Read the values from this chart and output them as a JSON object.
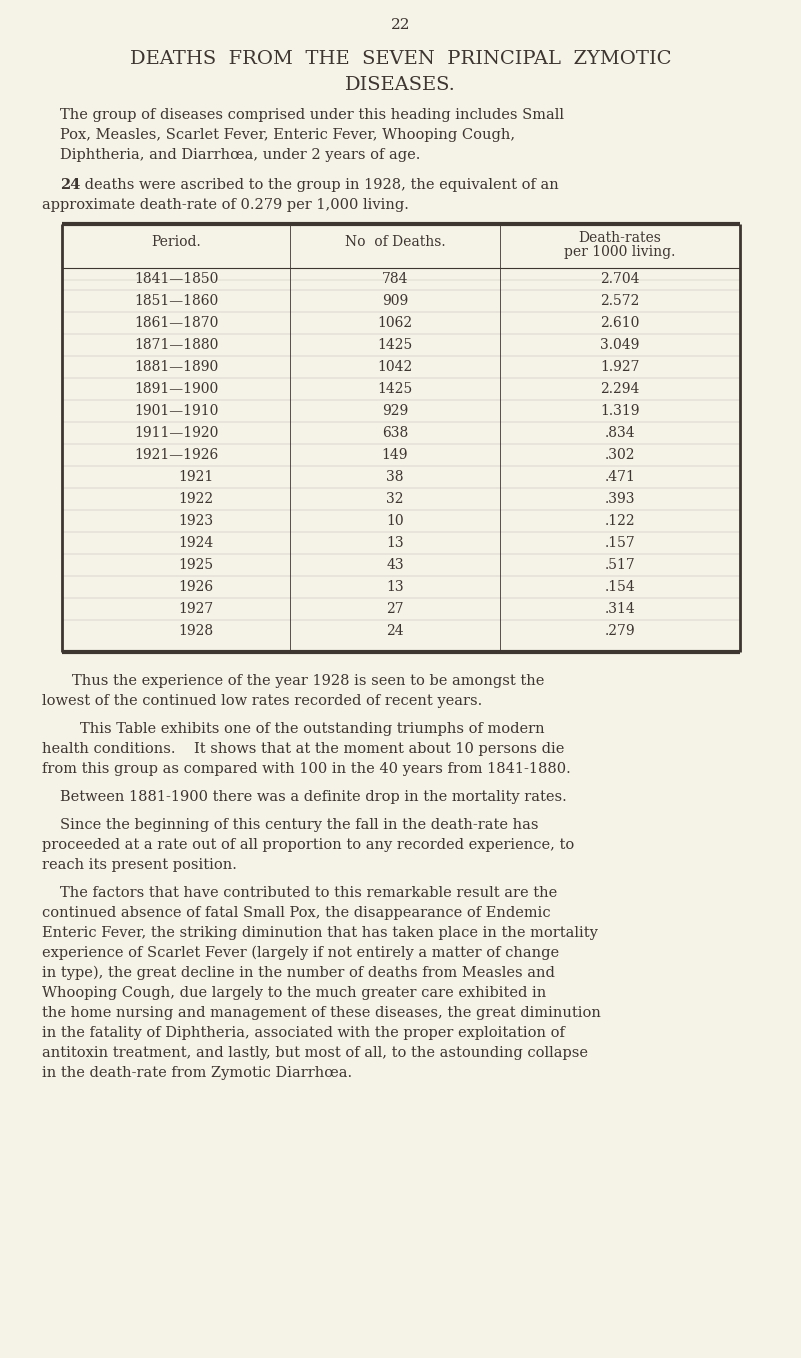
{
  "page_number": "22",
  "title_line1": "DEATHS  FROM  THE  SEVEN  PRINCIPAL  ZYMOTIC",
  "title_line2": "DISEASES.",
  "bg_color": "#f5f2e8",
  "text_color": "#3d3530",
  "para1_lines": [
    "The group of diseases comprised under this heading includes Small",
    "Pox, Measles, Scarlet Fever, Enteric Fever, Whooping Cough,",
    "Diphtheria, and Diarrhœa, under 2 years of age."
  ],
  "para2_bold": "24",
  "para2_rest_line1": " deaths were ascribed to the group in 1928, the equivalent of an",
  "para2_rest_line2": "approximate death-rate of 0.279 per 1,000 living.",
  "table_headers": [
    "Period.",
    "No  of Deaths.",
    "Death-rates\nper 1000 living."
  ],
  "table_rows": [
    [
      "1841—1850",
      "784",
      "2.704"
    ],
    [
      "1851—1860",
      "909",
      "2.572"
    ],
    [
      "1861—1870",
      "1062",
      "2.610"
    ],
    [
      "1871—1880",
      "1425",
      "3.049"
    ],
    [
      "1881—1890",
      "1042",
      "1.927"
    ],
    [
      "1891—1900",
      "1425",
      "2.294"
    ],
    [
      "1901—1910",
      "929",
      "1.319"
    ],
    [
      "1911—1920",
      "638",
      ".834"
    ],
    [
      "1921—1926",
      "149",
      ".302"
    ],
    [
      "1921",
      "38",
      ".471"
    ],
    [
      "1922",
      "32",
      ".393"
    ],
    [
      "1923",
      "10",
      ".122"
    ],
    [
      "1924",
      "13",
      ".157"
    ],
    [
      "1925",
      "43",
      ".517"
    ],
    [
      "1926",
      "13",
      ".154"
    ],
    [
      "1927",
      "27",
      ".314"
    ],
    [
      "1928",
      "24",
      ".279"
    ]
  ],
  "para3_lines": [
    "Thus the experience of the year 1928 is seen to be amongst the",
    "lowest of the continued low rates recorded of recent years."
  ],
  "para4_lines": [
    "This Table exhibits one of the outstanding triumphs of modern",
    "health conditions.    It shows that at the moment about 10 persons die",
    "from this group as compared with 100 in the 40 years from 1841-1880."
  ],
  "para5_lines": [
    "Between 1881-1900 there was a definite drop in the mortality rates."
  ],
  "para6_lines": [
    "Since the beginning of this century the fall in the death-rate has",
    "proceeded at a rate out of all proportion to any recorded experience, to",
    "reach its present position."
  ],
  "para7_lines": [
    "The factors that have contributed to this remarkable result are the",
    "continued absence of fatal Small Pox, the disappearance of Endemic",
    "Enteric Fever, the striking diminution that has taken place in the mortality",
    "experience of Scarlet Fever (largely if not entirely a matter of change",
    "in type), the great decline in the number of deaths from Measles and",
    "Whooping Cough, due largely to the much greater care exhibited in",
    "the home nursing and management of these diseases, the great diminution",
    "in the fatality of Diphtheria, associated with the proper exploitation of",
    "antitoxin treatment, and lastly, but most of all, to the astounding collapse",
    "in the death-rate from Zymotic Diarrhœa."
  ]
}
